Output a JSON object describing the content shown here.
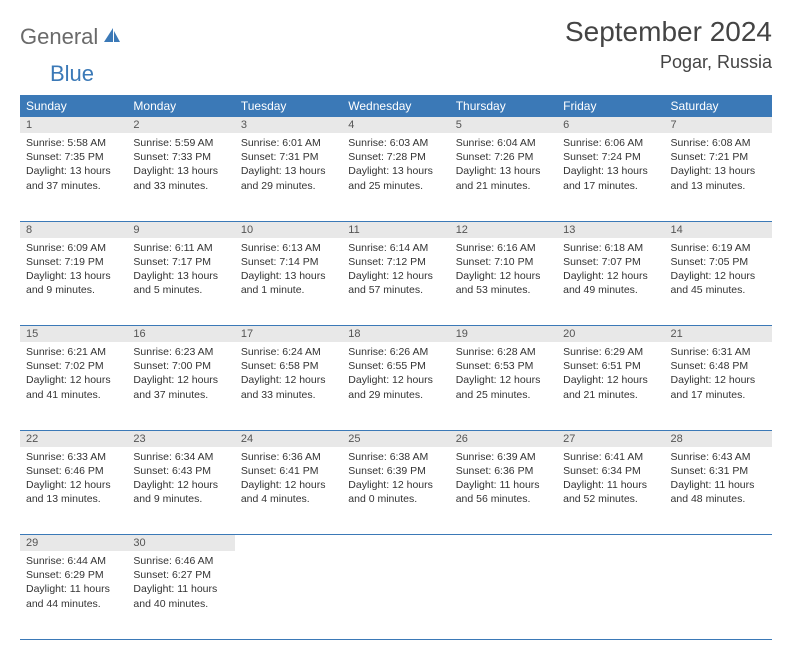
{
  "logo": {
    "main": "General",
    "accent": "Blue"
  },
  "title": "September 2024",
  "location": "Pogar, Russia",
  "colors": {
    "header_bg": "#3b79b7",
    "header_text": "#ffffff",
    "daynum_bg": "#e8e8e8",
    "border": "#3b79b7",
    "logo_gray": "#6a6a6a",
    "logo_blue": "#3b79b7"
  },
  "weekdays": [
    "Sunday",
    "Monday",
    "Tuesday",
    "Wednesday",
    "Thursday",
    "Friday",
    "Saturday"
  ],
  "weeks": [
    [
      {
        "day": "1",
        "sunrise": "5:58 AM",
        "sunset": "7:35 PM",
        "daylight": "13 hours and 37 minutes."
      },
      {
        "day": "2",
        "sunrise": "5:59 AM",
        "sunset": "7:33 PM",
        "daylight": "13 hours and 33 minutes."
      },
      {
        "day": "3",
        "sunrise": "6:01 AM",
        "sunset": "7:31 PM",
        "daylight": "13 hours and 29 minutes."
      },
      {
        "day": "4",
        "sunrise": "6:03 AM",
        "sunset": "7:28 PM",
        "daylight": "13 hours and 25 minutes."
      },
      {
        "day": "5",
        "sunrise": "6:04 AM",
        "sunset": "7:26 PM",
        "daylight": "13 hours and 21 minutes."
      },
      {
        "day": "6",
        "sunrise": "6:06 AM",
        "sunset": "7:24 PM",
        "daylight": "13 hours and 17 minutes."
      },
      {
        "day": "7",
        "sunrise": "6:08 AM",
        "sunset": "7:21 PM",
        "daylight": "13 hours and 13 minutes."
      }
    ],
    [
      {
        "day": "8",
        "sunrise": "6:09 AM",
        "sunset": "7:19 PM",
        "daylight": "13 hours and 9 minutes."
      },
      {
        "day": "9",
        "sunrise": "6:11 AM",
        "sunset": "7:17 PM",
        "daylight": "13 hours and 5 minutes."
      },
      {
        "day": "10",
        "sunrise": "6:13 AM",
        "sunset": "7:14 PM",
        "daylight": "13 hours and 1 minute."
      },
      {
        "day": "11",
        "sunrise": "6:14 AM",
        "sunset": "7:12 PM",
        "daylight": "12 hours and 57 minutes."
      },
      {
        "day": "12",
        "sunrise": "6:16 AM",
        "sunset": "7:10 PM",
        "daylight": "12 hours and 53 minutes."
      },
      {
        "day": "13",
        "sunrise": "6:18 AM",
        "sunset": "7:07 PM",
        "daylight": "12 hours and 49 minutes."
      },
      {
        "day": "14",
        "sunrise": "6:19 AM",
        "sunset": "7:05 PM",
        "daylight": "12 hours and 45 minutes."
      }
    ],
    [
      {
        "day": "15",
        "sunrise": "6:21 AM",
        "sunset": "7:02 PM",
        "daylight": "12 hours and 41 minutes."
      },
      {
        "day": "16",
        "sunrise": "6:23 AM",
        "sunset": "7:00 PM",
        "daylight": "12 hours and 37 minutes."
      },
      {
        "day": "17",
        "sunrise": "6:24 AM",
        "sunset": "6:58 PM",
        "daylight": "12 hours and 33 minutes."
      },
      {
        "day": "18",
        "sunrise": "6:26 AM",
        "sunset": "6:55 PM",
        "daylight": "12 hours and 29 minutes."
      },
      {
        "day": "19",
        "sunrise": "6:28 AM",
        "sunset": "6:53 PM",
        "daylight": "12 hours and 25 minutes."
      },
      {
        "day": "20",
        "sunrise": "6:29 AM",
        "sunset": "6:51 PM",
        "daylight": "12 hours and 21 minutes."
      },
      {
        "day": "21",
        "sunrise": "6:31 AM",
        "sunset": "6:48 PM",
        "daylight": "12 hours and 17 minutes."
      }
    ],
    [
      {
        "day": "22",
        "sunrise": "6:33 AM",
        "sunset": "6:46 PM",
        "daylight": "12 hours and 13 minutes."
      },
      {
        "day": "23",
        "sunrise": "6:34 AM",
        "sunset": "6:43 PM",
        "daylight": "12 hours and 9 minutes."
      },
      {
        "day": "24",
        "sunrise": "6:36 AM",
        "sunset": "6:41 PM",
        "daylight": "12 hours and 4 minutes."
      },
      {
        "day": "25",
        "sunrise": "6:38 AM",
        "sunset": "6:39 PM",
        "daylight": "12 hours and 0 minutes."
      },
      {
        "day": "26",
        "sunrise": "6:39 AM",
        "sunset": "6:36 PM",
        "daylight": "11 hours and 56 minutes."
      },
      {
        "day": "27",
        "sunrise": "6:41 AM",
        "sunset": "6:34 PM",
        "daylight": "11 hours and 52 minutes."
      },
      {
        "day": "28",
        "sunrise": "6:43 AM",
        "sunset": "6:31 PM",
        "daylight": "11 hours and 48 minutes."
      }
    ],
    [
      {
        "day": "29",
        "sunrise": "6:44 AM",
        "sunset": "6:29 PM",
        "daylight": "11 hours and 44 minutes."
      },
      {
        "day": "30",
        "sunrise": "6:46 AM",
        "sunset": "6:27 PM",
        "daylight": "11 hours and 40 minutes."
      },
      null,
      null,
      null,
      null,
      null
    ]
  ],
  "labels": {
    "sunrise": "Sunrise: ",
    "sunset": "Sunset: ",
    "daylight": "Daylight: "
  }
}
